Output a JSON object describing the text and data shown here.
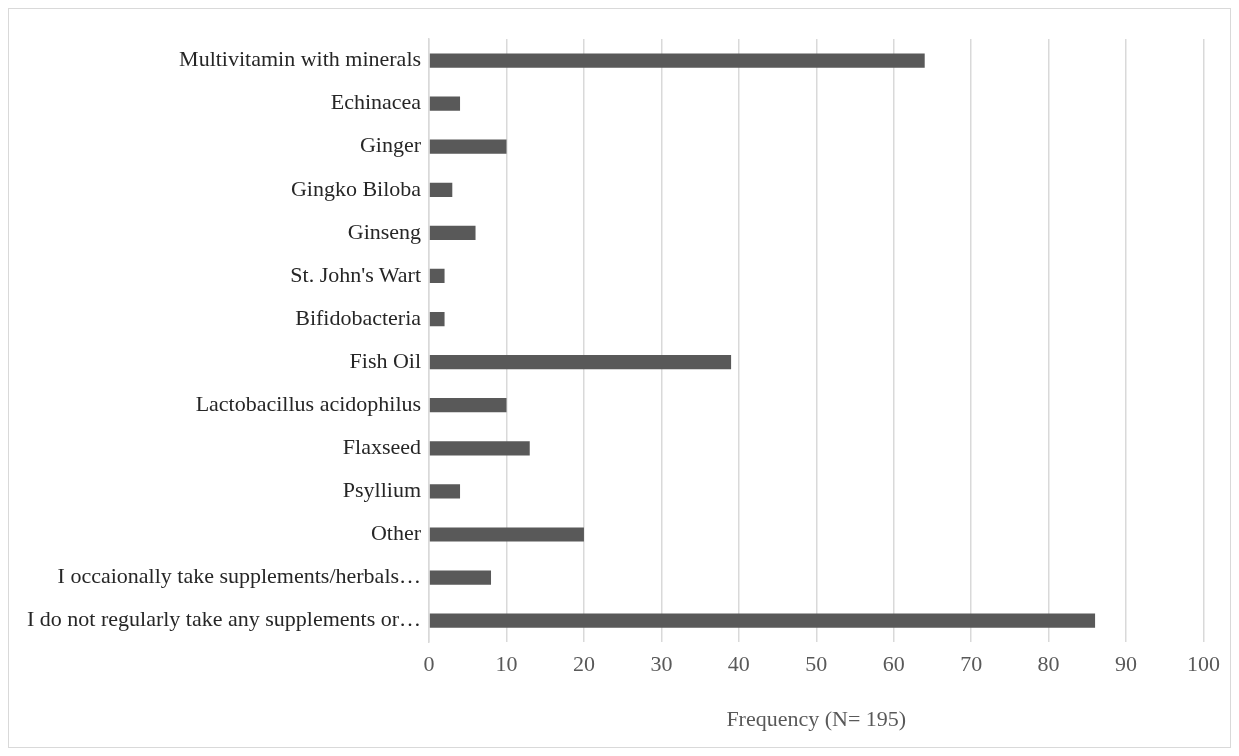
{
  "chart_data": {
    "type": "bar",
    "orientation": "horizontal",
    "xlabel": "Frequency (N= 195)",
    "categories": [
      "Multivitamin with minerals",
      "Echinacea",
      "Ginger",
      "Gingko Biloba",
      "Ginseng",
      "St. John's Wart",
      "Bifidobacteria",
      "Fish Oil",
      "Lactobacillus acidophilus",
      "Flaxseed",
      "Psyllium",
      "Other",
      "I occaionally take supplements/herbals…",
      "I do not regularly take any supplements or…"
    ],
    "values": [
      64,
      4,
      10,
      3,
      6,
      2,
      2,
      39,
      10,
      13,
      4,
      20,
      8,
      86
    ],
    "color": "#595959",
    "xlim": [
      0,
      100
    ],
    "xticks": [
      0,
      10,
      20,
      30,
      40,
      50,
      60,
      70,
      80,
      90,
      100
    ],
    "grid": "x",
    "legend": false
  }
}
